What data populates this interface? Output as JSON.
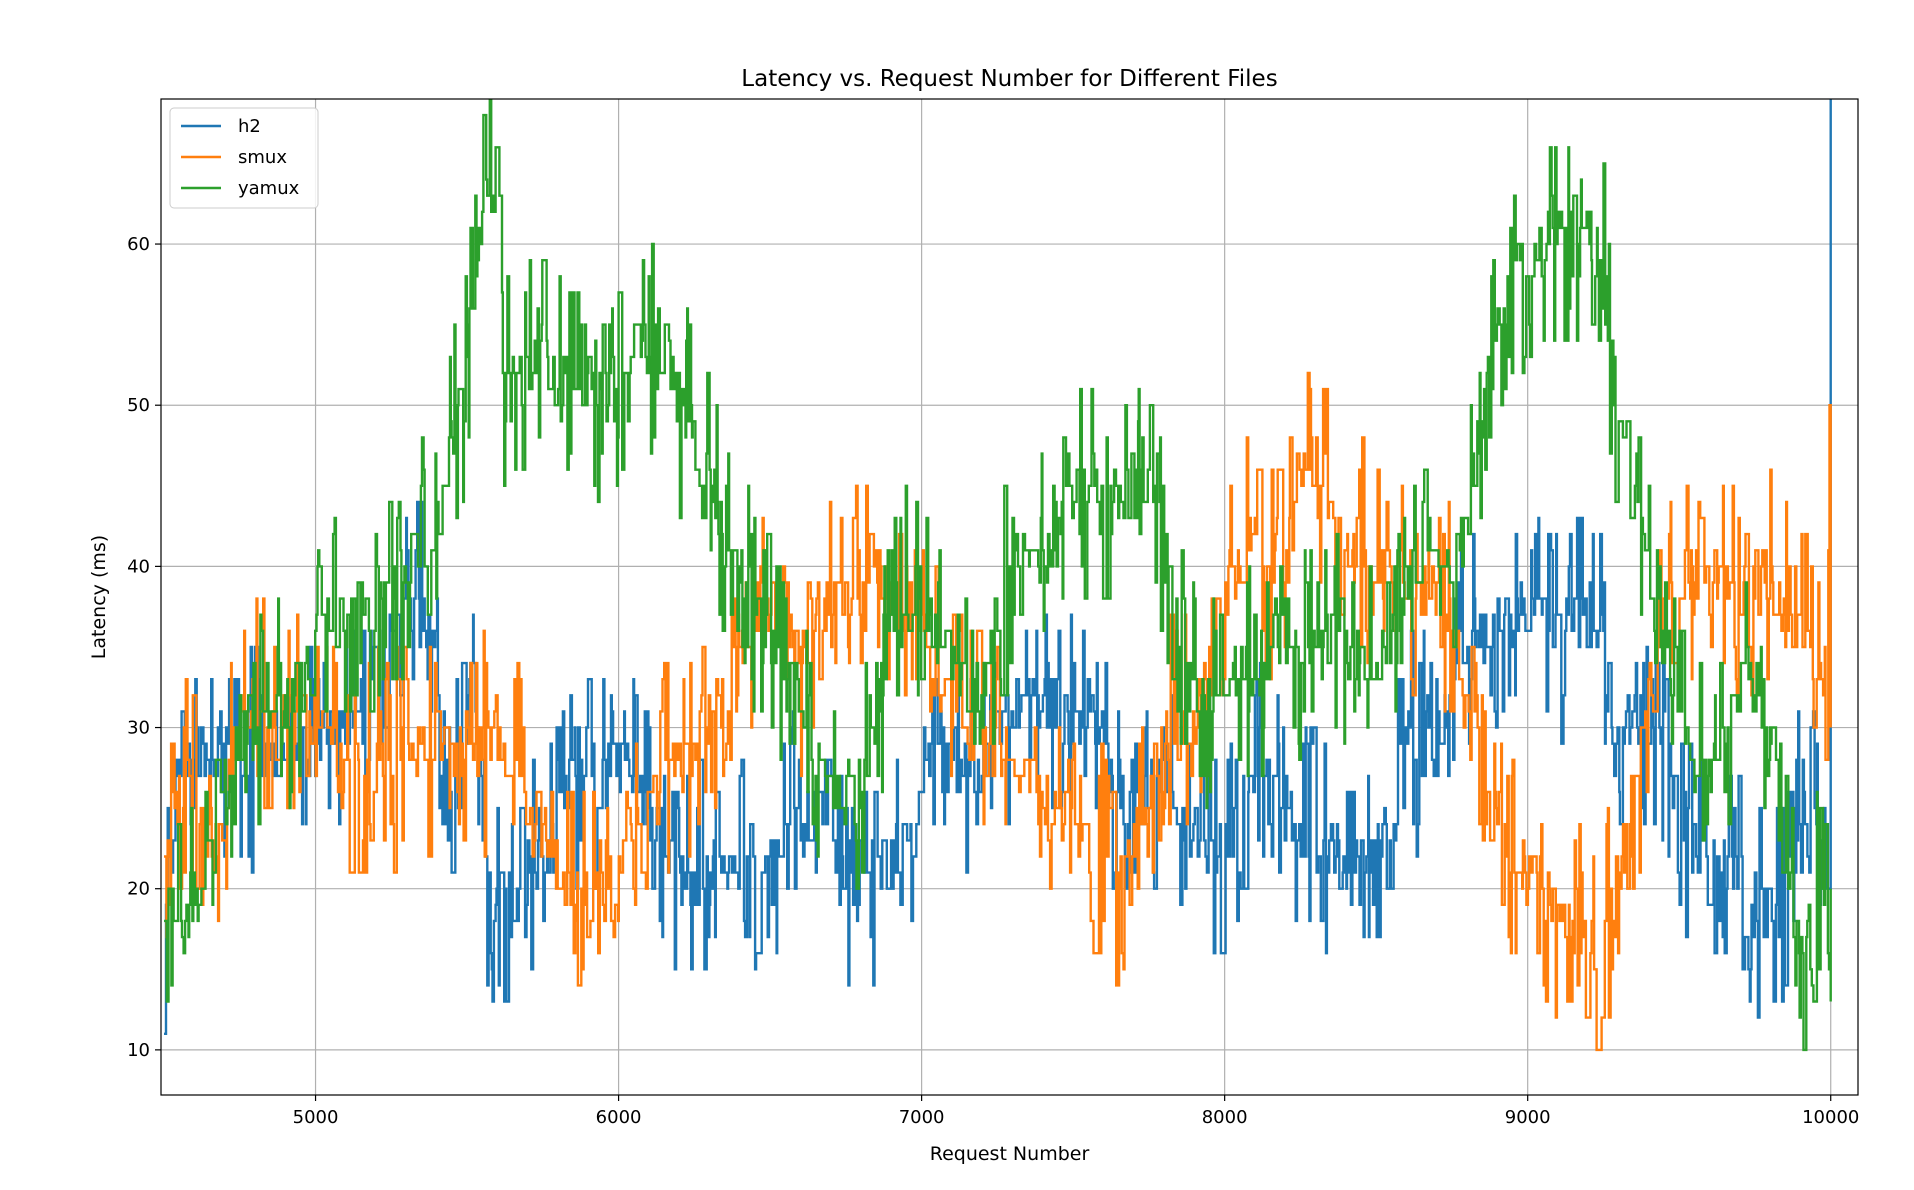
{
  "chart_data": {
    "type": "line",
    "title": "Latency vs. Request Number for Different Files",
    "xlabel": "Request Number",
    "ylabel": "Latency (ms)",
    "xlim": [
      4490,
      10090
    ],
    "ylim": [
      7.2,
      69
    ],
    "xticks": [
      5000,
      6000,
      7000,
      8000,
      9000,
      10000
    ],
    "yticks": [
      10,
      20,
      30,
      40,
      50,
      60
    ],
    "grid": true,
    "legend_position": "upper-left",
    "series": [
      {
        "name": "h2",
        "color": "#1f77b4",
        "noise": 2.5,
        "points": [
          [
            4500,
            17
          ],
          [
            4520,
            22
          ],
          [
            4560,
            27
          ],
          [
            4600,
            29
          ],
          [
            4700,
            29
          ],
          [
            4800,
            28
          ],
          [
            4900,
            28
          ],
          [
            5000,
            29
          ],
          [
            5100,
            30
          ],
          [
            5200,
            35
          ],
          [
            5270,
            37
          ],
          [
            5300,
            37
          ],
          [
            5350,
            37
          ],
          [
            5400,
            35
          ],
          [
            5410,
            26
          ],
          [
            5440,
            24
          ],
          [
            5470,
            27
          ],
          [
            5490,
            36
          ],
          [
            5540,
            29
          ],
          [
            5560,
            20
          ],
          [
            5650,
            19
          ],
          [
            5700,
            21
          ],
          [
            5760,
            22
          ],
          [
            5800,
            26
          ],
          [
            5900,
            27
          ],
          [
            5960,
            27
          ],
          [
            6000,
            28
          ],
          [
            6060,
            27
          ],
          [
            6100,
            24
          ],
          [
            6120,
            24
          ],
          [
            6140,
            23
          ],
          [
            6200,
            21
          ],
          [
            6300,
            21
          ],
          [
            6400,
            22
          ],
          [
            6480,
            22
          ],
          [
            6500,
            23
          ],
          [
            6600,
            24
          ],
          [
            6700,
            26
          ],
          [
            6720,
            21
          ],
          [
            6780,
            19
          ],
          [
            6850,
            20
          ],
          [
            6920,
            22
          ],
          [
            6960,
            23
          ],
          [
            7000,
            26
          ],
          [
            7050,
            28
          ],
          [
            7100,
            28
          ],
          [
            7150,
            28
          ],
          [
            7200,
            27
          ],
          [
            7250,
            29
          ],
          [
            7300,
            31
          ],
          [
            7350,
            32
          ],
          [
            7400,
            32
          ],
          [
            7450,
            31
          ],
          [
            7500,
            30
          ],
          [
            7560,
            31
          ],
          [
            7600,
            30
          ],
          [
            7620,
            27
          ],
          [
            7660,
            26
          ],
          [
            7700,
            25
          ],
          [
            7760,
            26
          ],
          [
            7820,
            27
          ],
          [
            7880,
            24
          ],
          [
            7920,
            22
          ],
          [
            7960,
            22
          ],
          [
            8000,
            22
          ],
          [
            8020,
            23
          ],
          [
            8100,
            28
          ],
          [
            8120,
            29
          ],
          [
            8200,
            26
          ],
          [
            8240,
            24
          ],
          [
            8300,
            23
          ],
          [
            8400,
            22
          ],
          [
            8500,
            22
          ],
          [
            8540,
            24
          ],
          [
            8560,
            28
          ],
          [
            8620,
            29
          ],
          [
            8700,
            29
          ],
          [
            8780,
            35
          ],
          [
            8800,
            36
          ],
          [
            8900,
            36
          ],
          [
            9000,
            37
          ],
          [
            9050,
            37
          ],
          [
            9100,
            36
          ],
          [
            9150,
            37
          ],
          [
            9200,
            37
          ],
          [
            9250,
            36
          ],
          [
            9270,
            29
          ],
          [
            9350,
            30
          ],
          [
            9400,
            30
          ],
          [
            9460,
            29
          ],
          [
            9500,
            25
          ],
          [
            9560,
            22
          ],
          [
            9650,
            22
          ],
          [
            9700,
            21
          ],
          [
            9740,
            19
          ],
          [
            9800,
            19
          ],
          [
            9840,
            18
          ],
          [
            9860,
            22
          ],
          [
            9900,
            24
          ],
          [
            9950,
            24
          ],
          [
            9995,
            24
          ],
          [
            10000,
            69
          ]
        ]
      },
      {
        "name": "smux",
        "color": "#ff7f0e",
        "noise": 2.5,
        "points": [
          [
            4500,
            22
          ],
          [
            4540,
            25
          ],
          [
            4580,
            28
          ],
          [
            4620,
            24
          ],
          [
            4680,
            23
          ],
          [
            4720,
            28
          ],
          [
            4760,
            31
          ],
          [
            4800,
            32
          ],
          [
            4840,
            31
          ],
          [
            4880,
            30
          ],
          [
            4920,
            30
          ],
          [
            5000,
            31
          ],
          [
            5050,
            28
          ],
          [
            5100,
            28
          ],
          [
            5150,
            27
          ],
          [
            5200,
            28
          ],
          [
            5300,
            28
          ],
          [
            5350,
            28
          ],
          [
            5400,
            29
          ],
          [
            5450,
            29
          ],
          [
            5500,
            29
          ],
          [
            5600,
            29
          ],
          [
            5700,
            26
          ],
          [
            5750,
            24
          ],
          [
            5800,
            21
          ],
          [
            5850,
            20
          ],
          [
            5900,
            20
          ],
          [
            5950,
            19
          ],
          [
            6000,
            21
          ],
          [
            6050,
            24
          ],
          [
            6100,
            25
          ],
          [
            6150,
            27
          ],
          [
            6180,
            28
          ],
          [
            6220,
            27
          ],
          [
            6250,
            29
          ],
          [
            6300,
            31
          ],
          [
            6350,
            34
          ],
          [
            6400,
            37
          ],
          [
            6450,
            37
          ],
          [
            6500,
            38
          ],
          [
            6560,
            37
          ],
          [
            6600,
            34
          ],
          [
            6640,
            35
          ],
          [
            6680,
            38
          ],
          [
            6720,
            39
          ],
          [
            6760,
            39
          ],
          [
            6800,
            40
          ],
          [
            6850,
            40
          ],
          [
            6900,
            38
          ],
          [
            6950,
            38
          ],
          [
            7000,
            37
          ],
          [
            7050,
            33
          ],
          [
            7100,
            31
          ],
          [
            7150,
            30
          ],
          [
            7200,
            29
          ],
          [
            7300,
            28
          ],
          [
            7350,
            27
          ],
          [
            7400,
            25
          ],
          [
            7450,
            25
          ],
          [
            7500,
            24
          ],
          [
            7550,
            23
          ],
          [
            7600,
            22
          ],
          [
            7650,
            21
          ],
          [
            7700,
            22
          ],
          [
            7750,
            26
          ],
          [
            7800,
            30
          ],
          [
            7850,
            31
          ],
          [
            7900,
            31
          ],
          [
            7940,
            33
          ],
          [
            8000,
            38
          ],
          [
            8050,
            40
          ],
          [
            8100,
            42
          ],
          [
            8150,
            40
          ],
          [
            8200,
            40
          ],
          [
            8240,
            44
          ],
          [
            8300,
            47
          ],
          [
            8350,
            44
          ],
          [
            8400,
            41
          ],
          [
            8450,
            41
          ],
          [
            8500,
            40
          ],
          [
            8550,
            40
          ],
          [
            8600,
            39
          ],
          [
            8650,
            38
          ],
          [
            8700,
            38
          ],
          [
            8750,
            37
          ],
          [
            8780,
            34
          ],
          [
            8800,
            30
          ],
          [
            8850,
            28
          ],
          [
            8900,
            25
          ],
          [
            8950,
            22
          ],
          [
            9000,
            21
          ],
          [
            9050,
            20
          ],
          [
            9100,
            19
          ],
          [
            9150,
            18
          ],
          [
            9200,
            17
          ],
          [
            9250,
            17
          ],
          [
            9300,
            21
          ],
          [
            9340,
            23
          ],
          [
            9370,
            28
          ],
          [
            9400,
            33
          ],
          [
            9450,
            38
          ],
          [
            9500,
            39
          ],
          [
            9600,
            39
          ],
          [
            9700,
            39
          ],
          [
            9800,
            39
          ],
          [
            9850,
            37
          ],
          [
            9900,
            36
          ],
          [
            9950,
            34
          ],
          [
            9980,
            30
          ],
          [
            10000,
            47
          ]
        ]
      },
      {
        "name": "yamux",
        "color": "#2ca02c",
        "noise": 2.5,
        "points": [
          [
            4500,
            18
          ],
          [
            4540,
            18
          ],
          [
            4580,
            20
          ],
          [
            4620,
            20
          ],
          [
            4660,
            22
          ],
          [
            4700,
            26
          ],
          [
            4740,
            28
          ],
          [
            4780,
            30
          ],
          [
            4820,
            31
          ],
          [
            4860,
            31
          ],
          [
            4900,
            31
          ],
          [
            4950,
            33
          ],
          [
            5000,
            35
          ],
          [
            5050,
            36
          ],
          [
            5100,
            37
          ],
          [
            5150,
            37
          ],
          [
            5200,
            38
          ],
          [
            5250,
            38
          ],
          [
            5300,
            40
          ],
          [
            5350,
            42
          ],
          [
            5400,
            42
          ],
          [
            5430,
            45
          ],
          [
            5460,
            48
          ],
          [
            5500,
            52
          ],
          [
            5530,
            59
          ],
          [
            5560,
            62
          ],
          [
            5580,
            64
          ],
          [
            5600,
            66
          ],
          [
            5620,
            52
          ],
          [
            5660,
            51
          ],
          [
            5700,
            52
          ],
          [
            5750,
            53
          ],
          [
            5800,
            52
          ],
          [
            5850,
            51
          ],
          [
            5900,
            51
          ],
          [
            5950,
            51
          ],
          [
            6000,
            51
          ],
          [
            6050,
            53
          ],
          [
            6100,
            54
          ],
          [
            6150,
            54
          ],
          [
            6200,
            50
          ],
          [
            6250,
            48
          ],
          [
            6300,
            46
          ],
          [
            6350,
            42
          ],
          [
            6400,
            40
          ],
          [
            6450,
            37
          ],
          [
            6500,
            35
          ],
          [
            6550,
            33
          ],
          [
            6600,
            32
          ],
          [
            6650,
            29
          ],
          [
            6700,
            27
          ],
          [
            6750,
            26
          ],
          [
            6800,
            26
          ],
          [
            6850,
            30
          ],
          [
            6900,
            37
          ],
          [
            6950,
            38
          ],
          [
            7000,
            38
          ],
          [
            7050,
            35
          ],
          [
            7100,
            34
          ],
          [
            7150,
            33
          ],
          [
            7200,
            32
          ],
          [
            7250,
            36
          ],
          [
            7300,
            41
          ],
          [
            7350,
            41
          ],
          [
            7400,
            40
          ],
          [
            7450,
            42
          ],
          [
            7500,
            45
          ],
          [
            7550,
            45
          ],
          [
            7600,
            44
          ],
          [
            7650,
            44
          ],
          [
            7700,
            44
          ],
          [
            7750,
            44
          ],
          [
            7800,
            42
          ],
          [
            7850,
            35
          ],
          [
            7900,
            32
          ],
          [
            7950,
            32
          ],
          [
            8000,
            33
          ],
          [
            8050,
            34
          ],
          [
            8100,
            33
          ],
          [
            8150,
            35
          ],
          [
            8200,
            35
          ],
          [
            8250,
            35
          ],
          [
            8300,
            35
          ],
          [
            8400,
            35
          ],
          [
            8450,
            34
          ],
          [
            8500,
            34
          ],
          [
            8550,
            36
          ],
          [
            8600,
            39
          ],
          [
            8650,
            41
          ],
          [
            8700,
            41
          ],
          [
            8750,
            40
          ],
          [
            8800,
            43
          ],
          [
            8850,
            50
          ],
          [
            8900,
            56
          ],
          [
            8950,
            58
          ],
          [
            9000,
            59
          ],
          [
            9050,
            60
          ],
          [
            9100,
            60
          ],
          [
            9150,
            60
          ],
          [
            9200,
            60
          ],
          [
            9250,
            58
          ],
          [
            9300,
            49
          ],
          [
            9350,
            46
          ],
          [
            9400,
            40
          ],
          [
            9450,
            34
          ],
          [
            9500,
            30
          ],
          [
            9550,
            28
          ],
          [
            9600,
            27
          ],
          [
            9650,
            30
          ],
          [
            9700,
            33
          ],
          [
            9750,
            33
          ],
          [
            9800,
            30
          ],
          [
            9850,
            21
          ],
          [
            9900,
            16
          ],
          [
            9950,
            21
          ],
          [
            9980,
            20
          ],
          [
            10000,
            13
          ]
        ]
      }
    ]
  }
}
